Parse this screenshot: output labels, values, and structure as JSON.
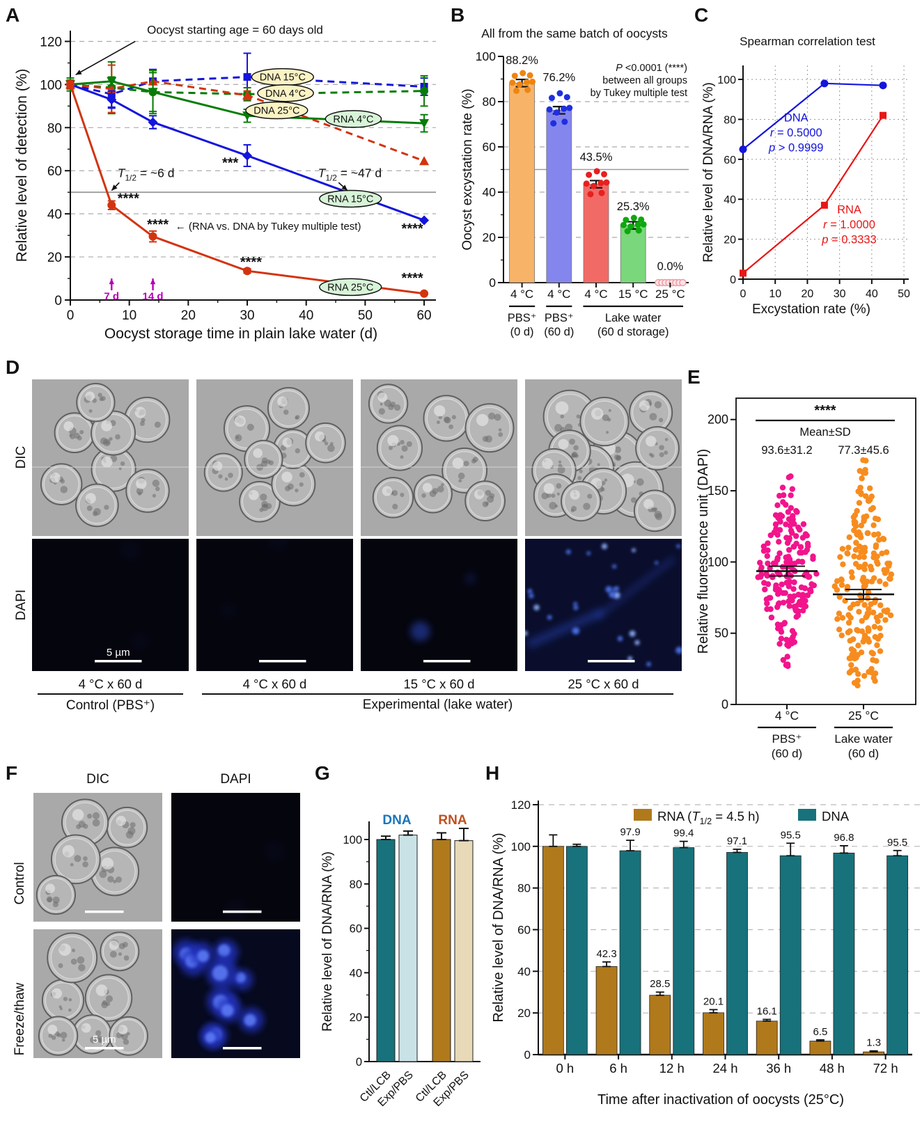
{
  "figure": {
    "a": {
      "label": "A"
    },
    "b": {
      "label": "B"
    },
    "c": {
      "label": "C"
    },
    "d": {
      "label": "D",
      "row_labels": [
        "DIC",
        "DAPI"
      ],
      "col_labels": [
        "4 °C x 60 d",
        "4 °C x 60 d",
        "15 °C x 60 d",
        "25 °C x 60 d"
      ],
      "group_labels": [
        "Control (PBS⁺)",
        "Experimental (lake water)"
      ],
      "scale_label": "5 µm",
      "dic_kinds": [
        "dic",
        "dic",
        "dic",
        "dic-dense"
      ],
      "dapi_kinds": [
        "dapi-black",
        "dapi-black",
        "dapi-faint",
        "dapi-spots"
      ]
    },
    "e": {
      "label": "E"
    },
    "f": {
      "label": "F",
      "col_labels": [
        "DIC",
        "DAPI"
      ],
      "row_labels": [
        "Control",
        "Freeze/thaw"
      ],
      "scale_label": "5 µm",
      "kinds": [
        [
          "dic",
          "dapi-black"
        ],
        [
          "dic-broken",
          "dapi-blobs"
        ]
      ]
    },
    "g": {
      "label": "G"
    },
    "h": {
      "label": "H"
    }
  },
  "chart_data": {
    "a": {
      "type": "line",
      "xlabel": "Oocyst storage time in plain lake water (d)",
      "ylabel": "Relative level of detection (%)",
      "xlim": [
        0,
        62
      ],
      "ylim": [
        0,
        125
      ],
      "xticks": [
        0,
        10,
        20,
        30,
        40,
        50,
        60
      ],
      "yticks": [
        0,
        20,
        40,
        60,
        80,
        100,
        120
      ],
      "halfline": 50,
      "x": [
        0,
        7,
        14,
        30,
        60
      ],
      "series": [
        {
          "name": "DNA 15°C",
          "color": "#1414DC",
          "dash": "10,7",
          "marker": "square",
          "values": [
            100,
            95.5,
            101.5,
            103.5,
            99
          ],
          "errors": [
            2,
            6,
            5.5,
            11,
            4
          ],
          "pill_x": 36,
          "pill_y": 103.5,
          "pill_fill": "#FBF3C4"
        },
        {
          "name": "DNA 4°C",
          "color": "#067D06",
          "dash": "10,7",
          "marker": "circle",
          "values": [
            100,
            98.5,
            96.5,
            95.5,
            97
          ],
          "errors": [
            3,
            12,
            9,
            3,
            7
          ],
          "pill_x": 36.5,
          "pill_y": 96,
          "pill_fill": "#FBF3C4"
        },
        {
          "name": "DNA 25°C",
          "color": "#D23410",
          "dash": "10,7",
          "marker": "triangle-up",
          "values": [
            100,
            98,
            101.5,
            95,
            64.5
          ],
          "errors": [
            2,
            11,
            5,
            2,
            0
          ],
          "pill_x": 35,
          "pill_y": 88,
          "pill_fill": "#FBF3C4"
        },
        {
          "name": "RNA 4°C",
          "color": "#067D06",
          "dash": "",
          "marker": "triangle-down",
          "values": [
            100,
            101.5,
            96.5,
            85.5,
            82
          ],
          "errors": [
            2,
            2,
            10,
            3,
            4
          ],
          "pill_x": 48,
          "pill_y": 84,
          "pill_fill": "#D8F4D8"
        },
        {
          "name": "RNA 15°C",
          "color": "#1414DC",
          "dash": "",
          "marker": "diamond",
          "values": [
            100,
            93,
            82.5,
            67,
            37
          ],
          "errors": [
            2,
            4,
            3,
            5,
            0
          ],
          "pill_x": 47.5,
          "pill_y": 47,
          "pill_fill": "#D8F4D8"
        },
        {
          "name": "RNA 25°C",
          "color": "#D23410",
          "dash": "",
          "marker": "circle",
          "values": [
            100,
            44,
            29.5,
            13.5,
            3
          ],
          "errors": [
            2,
            2,
            2.5,
            1,
            0
          ],
          "pill_x": 47.5,
          "pill_y": 6,
          "pill_fill": "#D8F4D8"
        }
      ],
      "annotations": [
        {
          "text": "Oocyst starting age = 60 days old",
          "x": 13,
          "y": 123.5,
          "anchor": "start",
          "size": 17,
          "arrow": [
            11,
            120,
            0.9,
            104.5
          ]
        },
        {
          "text": "T1/2 = ~6 d",
          "x": 8,
          "y": 57,
          "anchor": "start",
          "size": 17.5,
          "arrow": [
            8.3,
            54.5,
            7,
            50.8
          ]
        },
        {
          "text": "T1/2 = ~47 d",
          "x": 42,
          "y": 57,
          "anchor": "start",
          "size": 17.5,
          "arrow": [
            45.5,
            54.5,
            47,
            50.8
          ]
        },
        {
          "text": "***",
          "x": 28.5,
          "y": 61.5,
          "anchor": "end",
          "size": 20,
          "bold": true
        },
        {
          "text": "****",
          "x": 8,
          "y": 45,
          "anchor": "start",
          "size": 20,
          "bold": true
        },
        {
          "text": "****",
          "x": 13,
          "y": 33,
          "anchor": "start",
          "size": 20,
          "bold": true
        },
        {
          "text": "← (RNA vs. DNA by Tukey multiple test)",
          "x": 17.8,
          "y": 32.6,
          "anchor": "start",
          "size": 15
        },
        {
          "text": "****",
          "x": 28.8,
          "y": 15.5,
          "anchor": "start",
          "size": 20,
          "bold": true
        },
        {
          "text": "****",
          "x": 58,
          "y": 31,
          "anchor": "middle",
          "size": 20,
          "bold": true
        },
        {
          "text": "****",
          "x": 58,
          "y": 8,
          "anchor": "middle",
          "size": 20,
          "bold": true
        }
      ],
      "day_arrows": [
        {
          "label": "7 d",
          "x": 7
        },
        {
          "label": "14 d",
          "x": 14
        }
      ],
      "day_arrow_color": "#B400B4"
    },
    "b": {
      "type": "bar",
      "title": "All from the same batch of oocysts",
      "ylabel": "Oocyst excystation rate (%)",
      "ylim": [
        0,
        100
      ],
      "yticks": [
        0,
        20,
        40,
        60,
        80,
        100
      ],
      "halfline": 50,
      "note_lines": [
        "P <0.0001 (****)",
        "between all groups",
        "by Tukey multiple test"
      ],
      "bars": [
        {
          "value": 88.2,
          "label": "88.2%",
          "tick": "4 °C",
          "fill": "#F7B469",
          "dot_color": "#EE8512",
          "open": false
        },
        {
          "value": 76.2,
          "label": "76.2%",
          "tick": "4 °C",
          "fill": "#8486EE",
          "dot_color": "#1F2FE0",
          "open": false
        },
        {
          "value": 43.5,
          "label": "43.5%",
          "tick": "4 °C",
          "fill": "#F26A66",
          "dot_color": "#E81F1F",
          "open": false
        },
        {
          "value": 25.3,
          "label": "25.3%",
          "tick": "15 °C",
          "fill": "#7BD77B",
          "dot_color": "#0EA80E",
          "open": false
        },
        {
          "value": 0.0,
          "label": "0.0%",
          "tick": "25 °C",
          "fill": "#FACBD0",
          "dot_color": "#F5AEB6",
          "open": true
        }
      ],
      "groups": [
        {
          "from": 0,
          "to": 0,
          "line1": "PBS⁺",
          "line2": "(0 d)"
        },
        {
          "from": 1,
          "to": 1,
          "line1": "PBS⁺",
          "line2": "(60 d)"
        },
        {
          "from": 2,
          "to": 4,
          "line1": "Lake water",
          "line2": "(60 d storage)"
        }
      ]
    },
    "c": {
      "type": "line",
      "title": "Spearman correlation test",
      "ylabel": "Relative level of DNA/RNA (%)",
      "xlabel": "Excystation rate (%)",
      "xlim": [
        0,
        51.5
      ],
      "ylim": [
        0,
        107
      ],
      "xticks": [
        0,
        10,
        20,
        30,
        40,
        50
      ],
      "yticks": [
        0,
        20,
        40,
        60,
        80,
        100
      ],
      "series": [
        {
          "name": "DNA",
          "color": "#1414DC",
          "marker": "circle",
          "x": [
            0,
            25.3,
            43.5
          ],
          "y": [
            65,
            98,
            97
          ],
          "stats": [
            "DNA",
            "r = 0.5000",
            "p > 0.9999"
          ],
          "label_x": 16.5,
          "label_y": 79
        },
        {
          "name": "RNA",
          "color": "#E81616",
          "marker": "square",
          "x": [
            0,
            25.3,
            43.5
          ],
          "y": [
            3,
            37,
            82
          ],
          "stats": [
            "RNA",
            "r = 1.0000",
            "p = 0.3333"
          ],
          "label_x": 33,
          "label_y": 33
        }
      ]
    },
    "e": {
      "type": "swarm",
      "ylabel": "Relative fluorescence unit (DAPI)",
      "ylim": [
        0,
        215
      ],
      "yticks": [
        0,
        50,
        100,
        150,
        200
      ],
      "sig": "****",
      "legend": "Mean±SD",
      "groups": [
        {
          "tick": "4 °C",
          "sub1": "PBS⁺",
          "sub2": "(60 d)",
          "color": "#F2148C",
          "mean": 93.6,
          "sd": 31.2,
          "stat": "93.6±31.2",
          "n": 205,
          "min": 25,
          "max": 162
        },
        {
          "tick": "25 °C",
          "sub1": "Lake water",
          "sub2": "(60 d)",
          "color": "#F78C1E",
          "mean": 77.3,
          "sd": 45.6,
          "stat": "77.3±45.6",
          "n": 205,
          "min": 13,
          "max": 174
        }
      ]
    },
    "g": {
      "type": "bar",
      "ylabel": "Relative level of DNA/RNA (%)",
      "ylim": [
        0,
        110
      ],
      "yticks": [
        0,
        20,
        40,
        60,
        80,
        100
      ],
      "groups": [
        {
          "name": "DNA",
          "name_color": "#1B75BB",
          "bars": [
            {
              "tick": "Ctl/LCB",
              "value": 100,
              "err": 1.5,
              "fill": "#17727B"
            },
            {
              "tick": "Exp/PBS",
              "value": 102,
              "err": 1.8,
              "fill": "#C9E2E6"
            }
          ]
        },
        {
          "name": "RNA",
          "name_color": "#C0501E",
          "bars": [
            {
              "tick": "Ctl/LCB",
              "value": 100,
              "err": 3,
              "fill": "#B0791B"
            },
            {
              "tick": "Exp/PBS",
              "value": 99.5,
              "err": 5.5,
              "fill": "#E8DAB8"
            }
          ]
        }
      ]
    },
    "h": {
      "type": "bar",
      "ylabel": "Relative level of DNA/RNA (%)",
      "xlabel": "Time after inactivation of oocysts (25°C)",
      "ylim": [
        0,
        122
      ],
      "yticks": [
        0,
        20,
        40,
        60,
        80,
        100,
        120
      ],
      "legend": [
        {
          "label": "RNA (T1/2 = 4.5 h)",
          "color": "#B0791B"
        },
        {
          "label": "DNA",
          "color": "#17727B"
        }
      ],
      "categories": [
        "0 h",
        "6 h",
        "12 h",
        "24 h",
        "36 h",
        "48 h",
        "72 h"
      ],
      "series": [
        {
          "name": "RNA",
          "color": "#B0791B",
          "values": [
            100,
            42.3,
            28.5,
            20.1,
            16.1,
            6.5,
            1.3
          ],
          "errors": [
            5.5,
            2.2,
            1.5,
            1.5,
            0.8,
            0.6,
            0.5
          ],
          "labels": [
            "",
            "42.3",
            "28.5",
            "20.1",
            "16.1",
            "6.5",
            "1.3"
          ]
        },
        {
          "name": "DNA",
          "color": "#17727B",
          "values": [
            100,
            97.9,
            99.4,
            97.1,
            95.5,
            96.8,
            95.5
          ],
          "errors": [
            1,
            5,
            3,
            1.5,
            6,
            3.5,
            2.5
          ],
          "labels": [
            "",
            "97.9",
            "99.4",
            "97.1",
            "95.5",
            "96.8",
            "95.5"
          ]
        }
      ]
    }
  }
}
